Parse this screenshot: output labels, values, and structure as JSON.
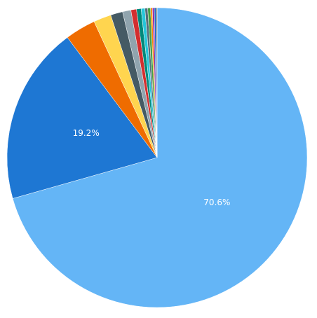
{
  "chart_data": {
    "type": "pie",
    "values": [
      70.6,
      19.2,
      3.3,
      1.9,
      1.3,
      0.9,
      0.6,
      0.5,
      0.4,
      0.3,
      0.3,
      0.2,
      0.2,
      0.2,
      0.1
    ],
    "value_labels": [
      "70.6%",
      "19.2%",
      null,
      null,
      null,
      null,
      null,
      null,
      null,
      null,
      null,
      null,
      null,
      null,
      null
    ],
    "colors": [
      "#64b5f6",
      "#1e77d3",
      "#ef6c00",
      "#ffd54f",
      "#455a64",
      "#90a4ae",
      "#d32f2f",
      "#00897b",
      "#26c6da",
      "#546e7a",
      "#43a047",
      "#fb8c00",
      "#8e24aa",
      "#1565c0",
      "#8d6e63"
    ]
  }
}
